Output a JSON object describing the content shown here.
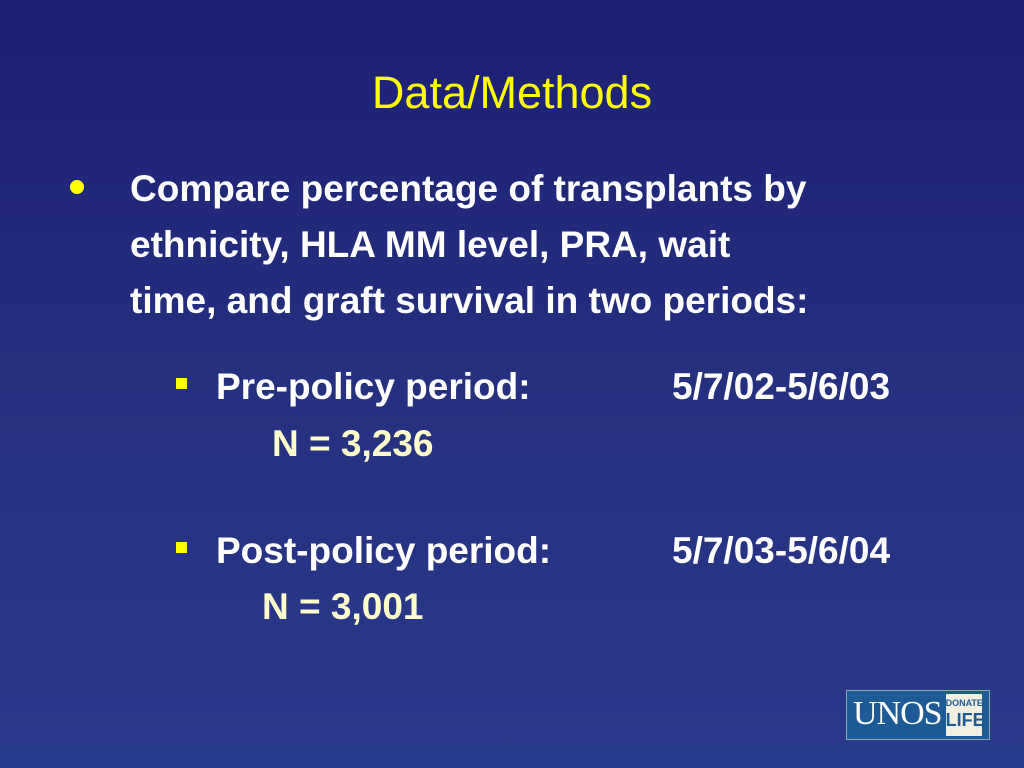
{
  "title": "Data/Methods",
  "bullet": {
    "lines": [
      "Compare percentage of transplants by",
      "ethnicity, HLA MM level, PRA, wait",
      "time, and graft survival in two periods:"
    ]
  },
  "sub_bullets": [
    {
      "label": "Pre-policy period:",
      "dates": "5/7/02-5/6/03",
      "n": "N = 3,236"
    },
    {
      "label": "Post-policy period:",
      "dates": "5/7/03-5/6/04",
      "n": "N = 3,001"
    }
  ],
  "logo": {
    "name": "UNOS",
    "badge_top": "DONATE",
    "badge_bottom": "LIFE"
  }
}
